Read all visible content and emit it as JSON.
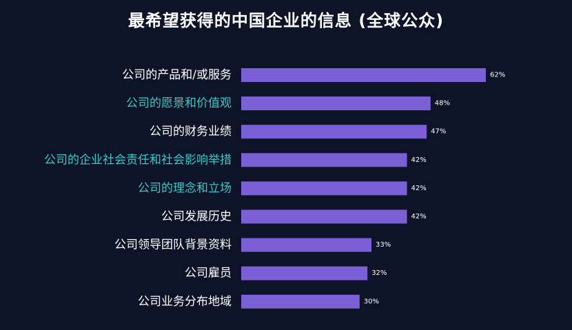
{
  "chart_data": {
    "type": "bar",
    "orientation": "horizontal",
    "title": "最希望获得的中国企业的信息 (全球公众)",
    "xlabel": "",
    "ylabel": "",
    "xlim": [
      0,
      62
    ],
    "grid": false,
    "legend": "none",
    "categories": [
      "公司的产品和/或服务",
      "公司的愿景和价值观",
      "公司的财务业绩",
      "公司的企业社会责任和社会影响举措",
      "公司的理念和立场",
      "公司发展历史",
      "公司领导团队背景资料",
      "公司雇员",
      "公司业务分布地域"
    ],
    "values": [
      62,
      48,
      47,
      42,
      42,
      42,
      33,
      32,
      30
    ],
    "value_labels": [
      "62%",
      "48%",
      "47%",
      "42%",
      "42%",
      "42%",
      "33%",
      "32%",
      "30%"
    ],
    "highlighted": [
      false,
      true,
      false,
      true,
      true,
      false,
      false,
      false,
      false
    ],
    "colors": {
      "background": "#0d1428",
      "bar": "#7b5fd6",
      "label": "#ffffff",
      "highlight_label": "#3ec9c9",
      "value_label": "#ffffff"
    }
  }
}
